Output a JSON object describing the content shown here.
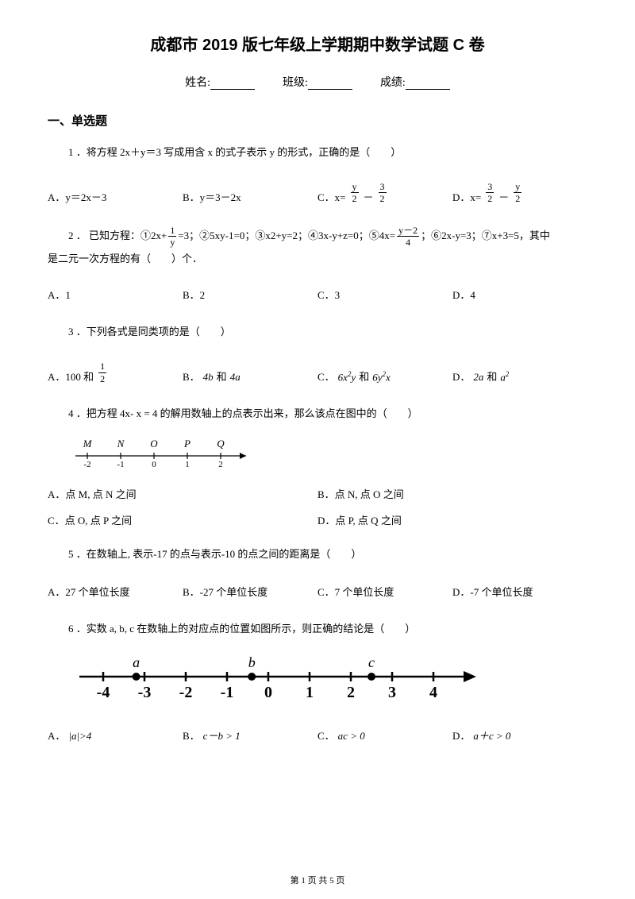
{
  "title": "成都市 2019 版七年级上学期期中数学试题 C 卷",
  "info": {
    "name_label": "姓名:",
    "class_label": "班级:",
    "score_label": "成绩:"
  },
  "section1": "一、单选题",
  "q1": {
    "text": "1 ．将方程 2x＋y＝3 写成用含 x 的式子表示 y 的形式，正确的是（　　）",
    "A_prefix": "A．y＝2x－3",
    "B_prefix": "B．y＝3－2x",
    "C_prefix": "C．x=",
    "C_num": "y",
    "C_den1": "2",
    "C_mid": "－",
    "C_num2": "3",
    "C_den2": "2",
    "D_prefix": "D．x=",
    "D_num": "3",
    "D_den1": "2",
    "D_mid": "－",
    "D_num2": "y",
    "D_den2": "2"
  },
  "q2": {
    "pre": "2 ． 已知方程：①2x+",
    "frac1_num": "1",
    "frac1_den": "y",
    "mid1": "=3；②5xy-1=0；③x2+y=2；④3x-y+z=0；⑤4x=",
    "frac2_num": "y－2",
    "frac2_den": "4",
    "post": "；⑥2x-y=3；⑦x+3=5，其中",
    "line2": "是二元一次方程的有（　　）个．",
    "A": "A．1",
    "B": "B．2",
    "C": "C．3",
    "D": "D．4"
  },
  "q3": {
    "text": "3 ．下列各式是同类项的是（　　）",
    "A_pre": "A．100 和",
    "A_num": "1",
    "A_den": "2",
    "B_pre": "B．",
    "B_a": "4b",
    "B_mid": "和",
    "B_b": "4a",
    "C_pre": "C．",
    "C_a": "6x",
    "C_sup1": "2",
    "C_y": "y",
    "C_mid": "和",
    "C_b": "6y",
    "C_sup2": "2",
    "C_x": "x",
    "D_pre": "D．",
    "D_a": "2a",
    "D_mid": "和",
    "D_b": "a",
    "D_sup": "2"
  },
  "q4": {
    "text": "4 ．把方程 4x- x = 4 的解用数轴上的点表示出来，那么该点在图中的（　　）",
    "labels": [
      "M",
      "N",
      "O",
      "P",
      "Q"
    ],
    "ticks": [
      "-2",
      "-1",
      "0",
      "1",
      "2"
    ],
    "A": "A．点 M, 点 N 之间",
    "B": "B．点 N, 点 O 之间",
    "C": "C．点 O, 点 P 之间",
    "D": "D．点 P, 点 Q 之间"
  },
  "q5": {
    "text": "5 ．在数轴上, 表示-17 的点与表示-10 的点之间的距离是（　　）",
    "A": "A．27 个单位长度",
    "B": "B．-27 个单位长度",
    "C": "C．7 个单位长度",
    "D": "D．-7 个单位长度"
  },
  "q6": {
    "text": "6 ．实数 a, b, c 在数轴上的对应点的位置如图所示，则正确的结论是（　　）",
    "ticks": [
      "-4",
      "-3",
      "-2",
      "-1",
      "0",
      "1",
      "2",
      "3",
      "4"
    ],
    "pts": {
      "a": -3.2,
      "b": -0.4,
      "c": 2.5
    },
    "A_pre": "A．",
    "A_body": "|a|>4",
    "B_pre": "B．",
    "B_body": "c－b > 1",
    "C_pre": "C．",
    "C_body": "ac > 0",
    "D_pre": "D．",
    "D_body": "a＋c > 0"
  },
  "footer": "第 1 页 共 5 页"
}
